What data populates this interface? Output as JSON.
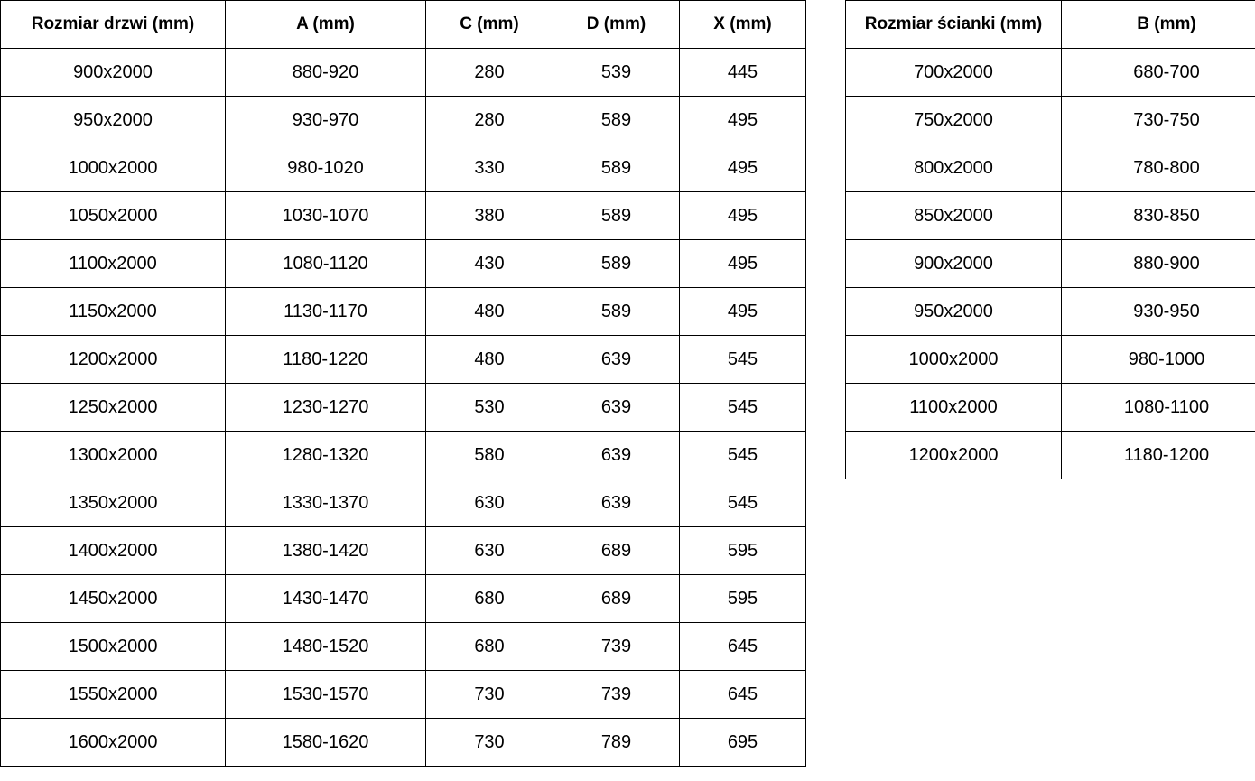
{
  "colors": {
    "border": "#000000",
    "text": "#000000",
    "background": "#ffffff"
  },
  "doors_table": {
    "headers": [
      "Rozmiar drzwi (mm)",
      "A (mm)",
      "C (mm)",
      "D (mm)",
      "X (mm)"
    ],
    "rows": [
      [
        "900x2000",
        "880-920",
        "280",
        "539",
        "445"
      ],
      [
        "950x2000",
        "930-970",
        "280",
        "589",
        "495"
      ],
      [
        "1000x2000",
        "980-1020",
        "330",
        "589",
        "495"
      ],
      [
        "1050x2000",
        "1030-1070",
        "380",
        "589",
        "495"
      ],
      [
        "1100x2000",
        "1080-1120",
        "430",
        "589",
        "495"
      ],
      [
        "1150x2000",
        "1130-1170",
        "480",
        "589",
        "495"
      ],
      [
        "1200x2000",
        "1180-1220",
        "480",
        "639",
        "545"
      ],
      [
        "1250x2000",
        "1230-1270",
        "530",
        "639",
        "545"
      ],
      [
        "1300x2000",
        "1280-1320",
        "580",
        "639",
        "545"
      ],
      [
        "1350x2000",
        "1330-1370",
        "630",
        "639",
        "545"
      ],
      [
        "1400x2000",
        "1380-1420",
        "630",
        "689",
        "595"
      ],
      [
        "1450x2000",
        "1430-1470",
        "680",
        "689",
        "595"
      ],
      [
        "1500x2000",
        "1480-1520",
        "680",
        "739",
        "645"
      ],
      [
        "1550x2000",
        "1530-1570",
        "730",
        "739",
        "645"
      ],
      [
        "1600x2000",
        "1580-1620",
        "730",
        "789",
        "695"
      ]
    ]
  },
  "walls_table": {
    "headers": [
      "Rozmiar ścianki (mm)",
      "B (mm)"
    ],
    "rows": [
      [
        "700x2000",
        "680-700"
      ],
      [
        "750x2000",
        "730-750"
      ],
      [
        "800x2000",
        "780-800"
      ],
      [
        "850x2000",
        "830-850"
      ],
      [
        "900x2000",
        "880-900"
      ],
      [
        "950x2000",
        "930-950"
      ],
      [
        "1000x2000",
        "980-1000"
      ],
      [
        "1100x2000",
        "1080-1100"
      ],
      [
        "1200x2000",
        "1180-1200"
      ]
    ]
  }
}
